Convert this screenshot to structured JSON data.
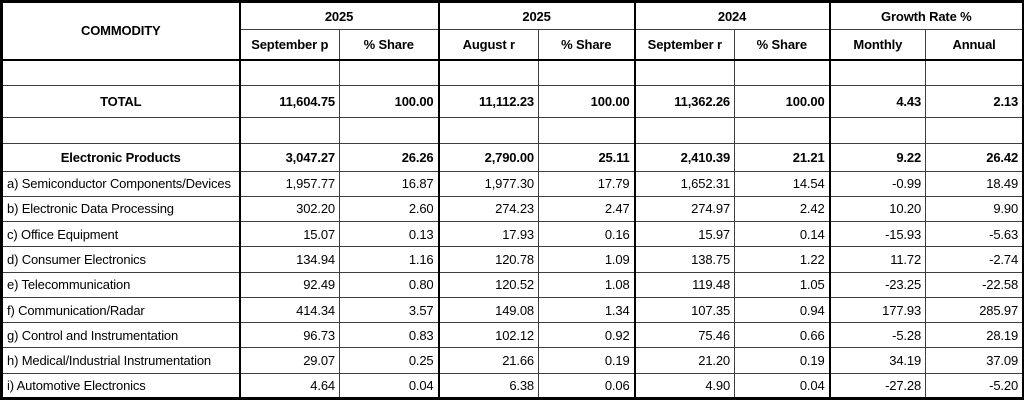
{
  "table": {
    "title_col": "COMMODITY",
    "col_groups": [
      {
        "label": "2025",
        "cols": [
          "September p",
          "% Share"
        ]
      },
      {
        "label": "2025",
        "cols": [
          "August r",
          "% Share"
        ]
      },
      {
        "label": "2024",
        "cols": [
          "September r",
          "% Share"
        ]
      },
      {
        "label": "Growth Rate %",
        "cols": [
          "Monthly",
          "Annual"
        ]
      }
    ],
    "rows": [
      {
        "type": "empty",
        "label": "",
        "values": [
          "",
          "",
          "",
          "",
          "",
          "",
          "",
          ""
        ]
      },
      {
        "type": "total",
        "label": "TOTAL",
        "values": [
          "11,604.75",
          "100.00",
          "11,112.23",
          "100.00",
          "11,362.26",
          "100.00",
          "4.43",
          "2.13"
        ]
      },
      {
        "type": "empty",
        "label": "",
        "values": [
          "",
          "",
          "",
          "",
          "",
          "",
          "",
          ""
        ]
      },
      {
        "type": "group",
        "label": "Electronic Products",
        "values": [
          "3,047.27",
          "26.26",
          "2,790.00",
          "25.11",
          "2,410.39",
          "21.21",
          "9.22",
          "26.42"
        ]
      },
      {
        "type": "item",
        "label": "a) Semiconductor Components/Devices",
        "values": [
          "1,957.77",
          "16.87",
          "1,977.30",
          "17.79",
          "1,652.31",
          "14.54",
          "-0.99",
          "18.49"
        ]
      },
      {
        "type": "item",
        "label": "b) Electronic Data Processing",
        "values": [
          "302.20",
          "2.60",
          "274.23",
          "2.47",
          "274.97",
          "2.42",
          "10.20",
          "9.90"
        ]
      },
      {
        "type": "item",
        "label": "c) Office Equipment",
        "values": [
          "15.07",
          "0.13",
          "17.93",
          "0.16",
          "15.97",
          "0.14",
          "-15.93",
          "-5.63"
        ]
      },
      {
        "type": "item",
        "label": "d) Consumer Electronics",
        "values": [
          "134.94",
          "1.16",
          "120.78",
          "1.09",
          "138.75",
          "1.22",
          "11.72",
          "-2.74"
        ]
      },
      {
        "type": "item",
        "label": "e) Telecommunication",
        "values": [
          "92.49",
          "0.80",
          "120.52",
          "1.08",
          "119.48",
          "1.05",
          "-23.25",
          "-22.58"
        ]
      },
      {
        "type": "item",
        "label": "f) Communication/Radar",
        "values": [
          "414.34",
          "3.57",
          "149.08",
          "1.34",
          "107.35",
          "0.94",
          "177.93",
          "285.97"
        ]
      },
      {
        "type": "item",
        "label": "g) Control and Instrumentation",
        "values": [
          "96.73",
          "0.83",
          "102.12",
          "0.92",
          "75.46",
          "0.66",
          "-5.28",
          "28.19"
        ]
      },
      {
        "type": "item",
        "label": "h) Medical/Industrial Instrumentation",
        "values": [
          "29.07",
          "0.25",
          "21.66",
          "0.19",
          "21.20",
          "0.19",
          "34.19",
          "37.09"
        ]
      },
      {
        "type": "item",
        "label": "i) Automotive Electronics",
        "values": [
          "4.64",
          "0.04",
          "6.38",
          "0.06",
          "4.90",
          "0.04",
          "-27.28",
          "-5.20"
        ]
      }
    ],
    "colors": {
      "background": "#ffffff",
      "text": "#000000",
      "border_outer": "#000000",
      "border_inner": "#3f3f3f"
    }
  }
}
